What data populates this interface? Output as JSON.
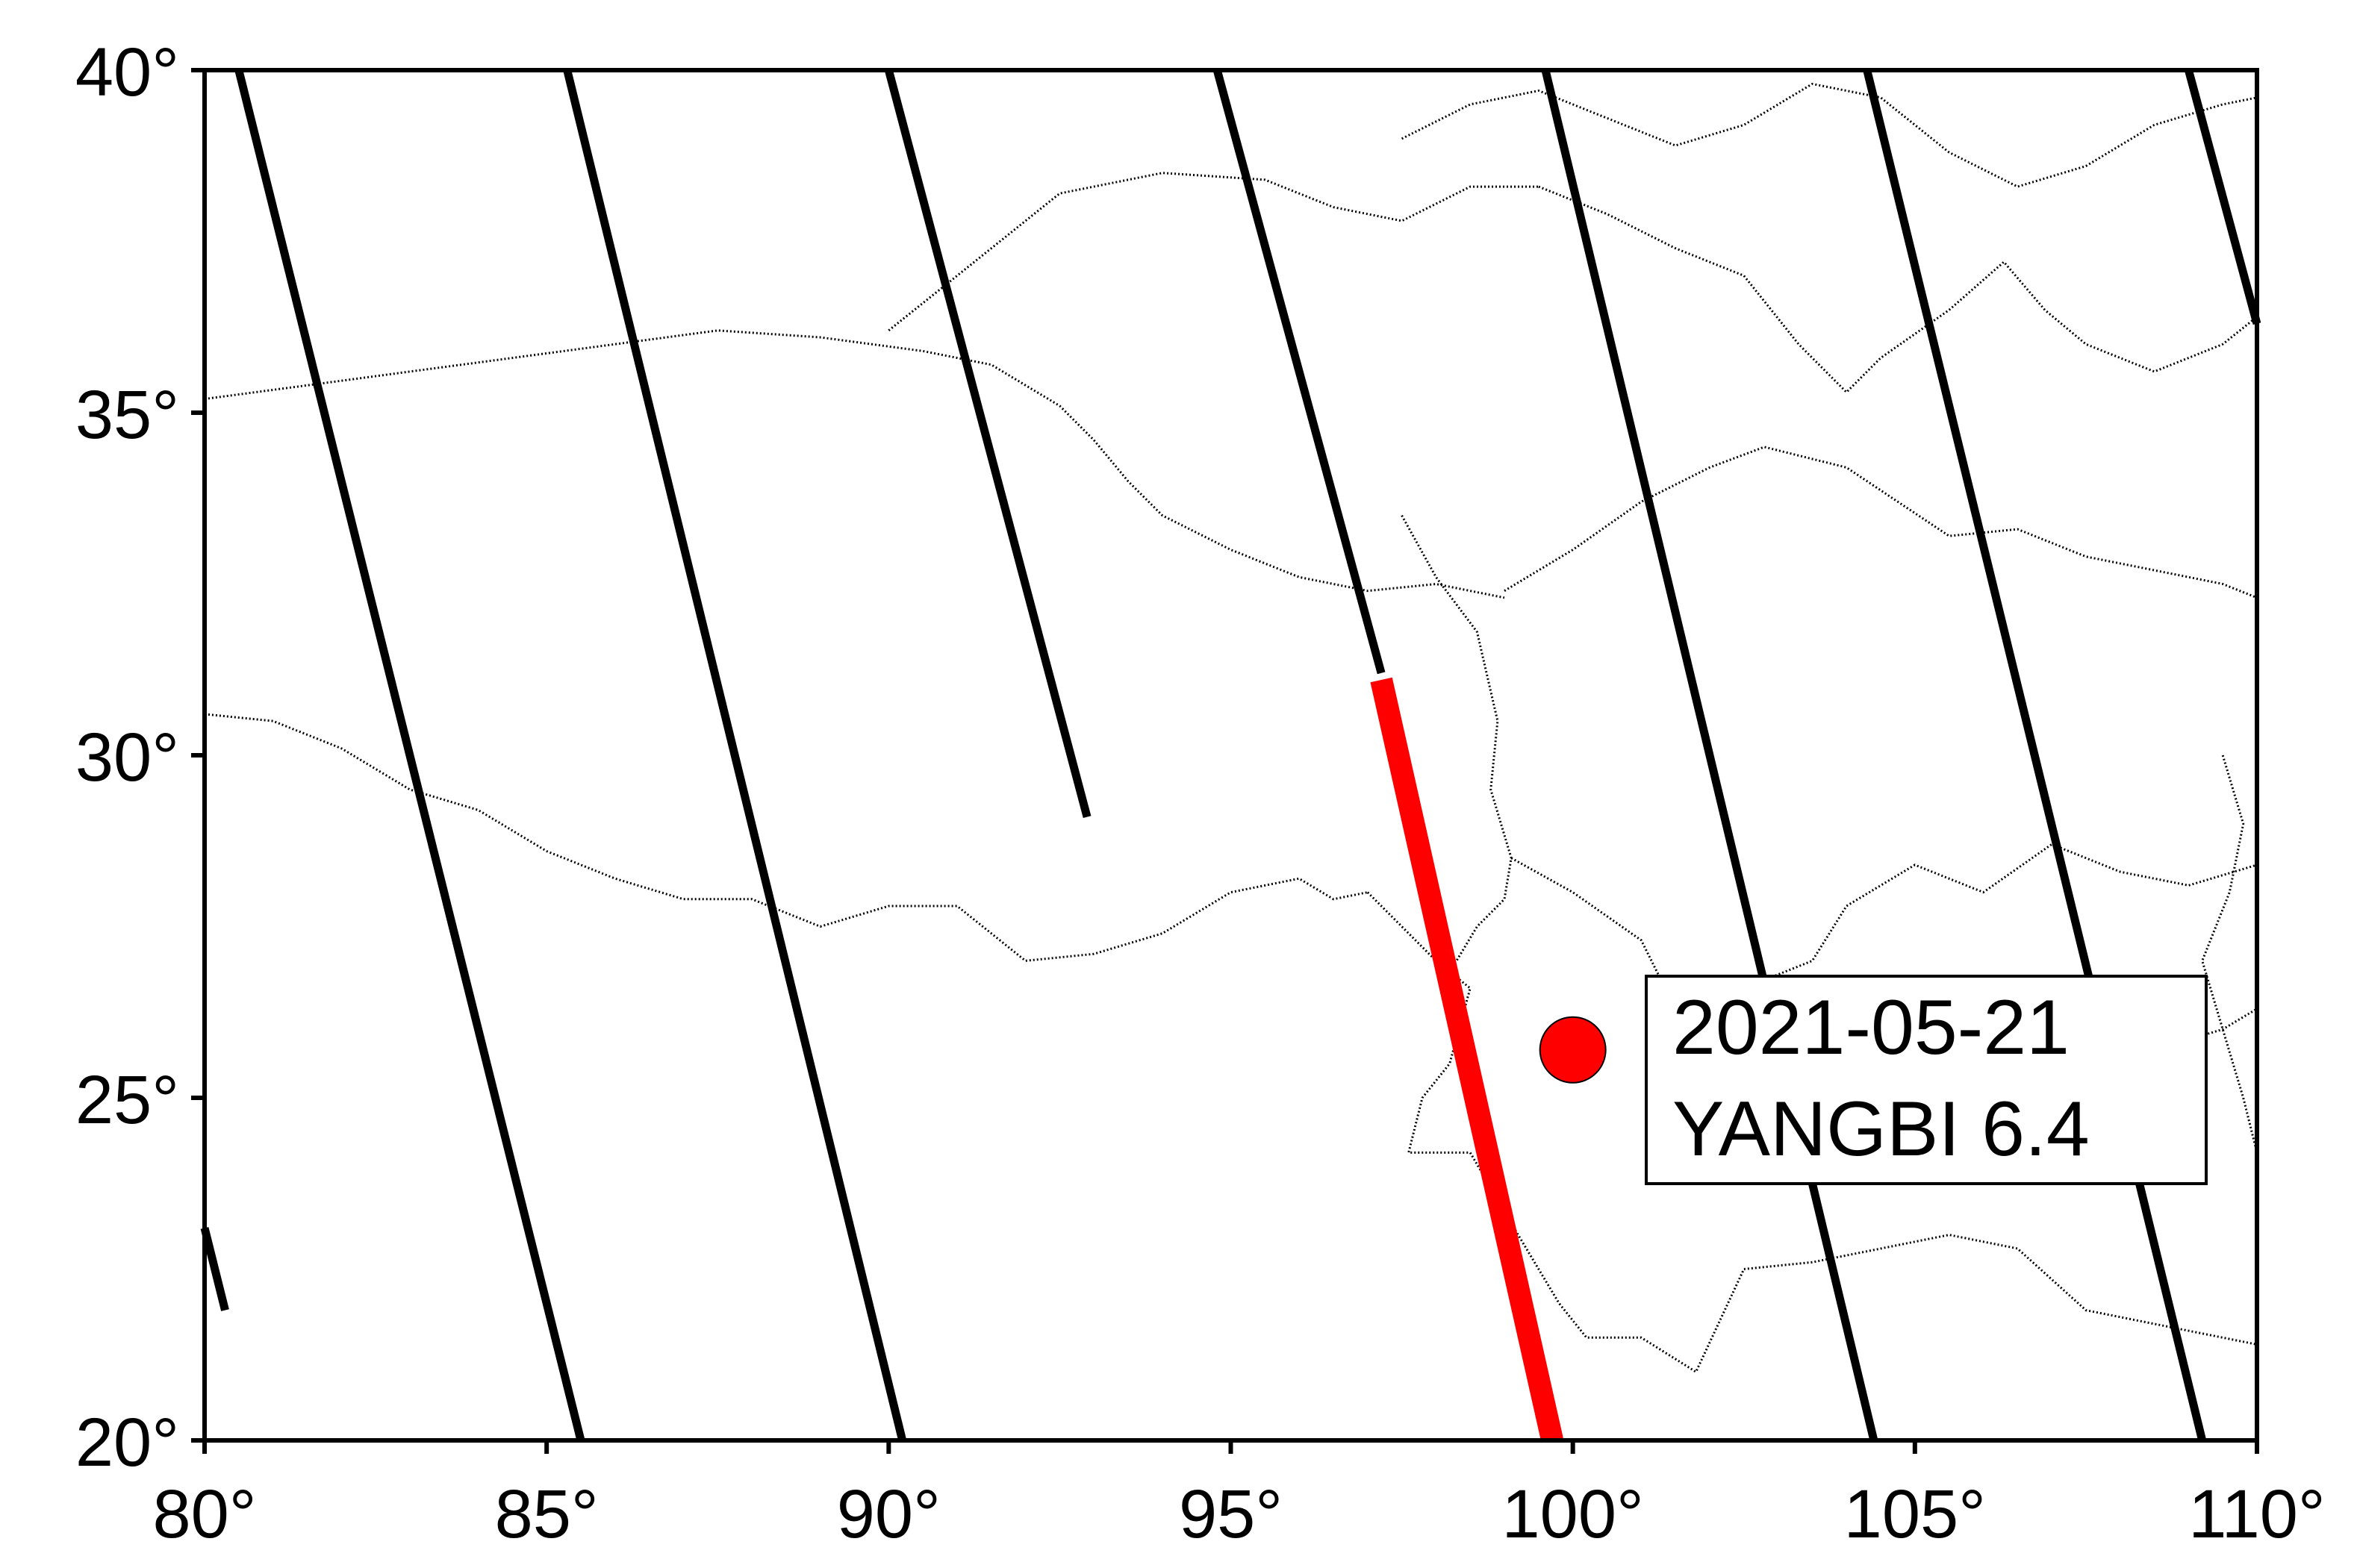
{
  "map": {
    "lon_range": [
      80,
      110
    ],
    "lat_range": [
      20,
      40
    ],
    "x_ticks": [
      {
        "value": 80,
        "label": "80°"
      },
      {
        "value": 85,
        "label": "85°"
      },
      {
        "value": 90,
        "label": "90°"
      },
      {
        "value": 95,
        "label": "95°"
      },
      {
        "value": 100,
        "label": "100°"
      },
      {
        "value": 105,
        "label": "105°"
      },
      {
        "value": 110,
        "label": "110°"
      }
    ],
    "y_ticks": [
      {
        "value": 20,
        "label": "20°"
      },
      {
        "value": 25,
        "label": "25°"
      },
      {
        "value": 30,
        "label": "30°"
      },
      {
        "value": 35,
        "label": "35°"
      },
      {
        "value": 40,
        "label": "40°"
      }
    ],
    "event": {
      "lon": 100.0,
      "lat": 25.7,
      "color": "#ff0000",
      "label_line1": "2021-05-21",
      "label_line2": "YANGBI 6.4"
    },
    "tracks_black": [
      {
        "name": "track-1",
        "points": [
          [
            80.5,
            40.0
          ],
          [
            85.5,
            20.0
          ]
        ]
      },
      {
        "name": "track-2",
        "points": [
          [
            85.3,
            40.0
          ],
          [
            90.2,
            20.0
          ]
        ]
      },
      {
        "name": "track-3",
        "points": [
          [
            90.0,
            40.0
          ],
          [
            92.9,
            29.1
          ]
        ]
      },
      {
        "name": "track-4",
        "points": [
          [
            94.8,
            40.0
          ],
          [
            97.2,
            31.2
          ]
        ]
      },
      {
        "name": "track-5",
        "points": [
          [
            99.6,
            40.0
          ],
          [
            104.4,
            20.0
          ]
        ]
      },
      {
        "name": "track-6",
        "points": [
          [
            104.3,
            40.0
          ],
          [
            109.2,
            20.0
          ]
        ]
      },
      {
        "name": "track-7",
        "points": [
          [
            109.0,
            40.0
          ],
          [
            110.0,
            36.3
          ]
        ]
      },
      {
        "name": "track-8",
        "points": [
          [
            80.0,
            23.1
          ],
          [
            80.3,
            21.9
          ]
        ]
      }
    ],
    "track_red": {
      "name": "selected-track",
      "color": "#ff0000",
      "points": [
        [
          97.2,
          31.1
        ],
        [
          99.7,
          20.0
        ]
      ]
    },
    "borders": [
      {
        "name": "border-south-himalaya",
        "points": [
          [
            80.0,
            30.6
          ],
          [
            81.0,
            30.5
          ],
          [
            82.0,
            30.1
          ],
          [
            83.0,
            29.5
          ],
          [
            84.0,
            29.2
          ],
          [
            85.0,
            28.6
          ],
          [
            86.0,
            28.2
          ],
          [
            87.0,
            27.9
          ],
          [
            88.0,
            27.9
          ],
          [
            89.0,
            27.5
          ],
          [
            90.0,
            27.8
          ],
          [
            91.0,
            27.8
          ],
          [
            92.0,
            27.0
          ],
          [
            93.0,
            27.1
          ],
          [
            94.0,
            27.4
          ],
          [
            95.0,
            28.0
          ],
          [
            96.0,
            28.2
          ],
          [
            96.5,
            27.9
          ],
          [
            97.0,
            28.0
          ]
        ]
      },
      {
        "name": "border-myanmar-yunnan",
        "points": [
          [
            97.0,
            28.0
          ],
          [
            97.5,
            27.5
          ],
          [
            98.0,
            27.0
          ],
          [
            98.5,
            26.6
          ],
          [
            98.2,
            25.5
          ],
          [
            97.8,
            25.0
          ],
          [
            97.6,
            24.2
          ],
          [
            98.5,
            24.2
          ],
          [
            99.2,
            23.0
          ],
          [
            99.8,
            22.0
          ],
          [
            100.2,
            21.5
          ],
          [
            101.0,
            21.5
          ],
          [
            101.8,
            21.0
          ],
          [
            102.5,
            22.5
          ],
          [
            103.5,
            22.6
          ],
          [
            104.5,
            22.8
          ],
          [
            105.5,
            23.0
          ],
          [
            106.5,
            22.8
          ],
          [
            107.5,
            21.9
          ],
          [
            108.5,
            21.7
          ],
          [
            109.5,
            21.5
          ],
          [
            110.0,
            21.4
          ]
        ]
      },
      {
        "name": "border-tibet-xinjiang",
        "points": [
          [
            80.0,
            35.2
          ],
          [
            81.5,
            35.4
          ],
          [
            83.0,
            35.6
          ],
          [
            84.5,
            35.8
          ],
          [
            86.0,
            36.0
          ],
          [
            87.5,
            36.2
          ],
          [
            89.0,
            36.1
          ],
          [
            90.5,
            35.9
          ],
          [
            91.5,
            35.7
          ],
          [
            92.5,
            35.1
          ],
          [
            93.0,
            34.6
          ]
        ]
      },
      {
        "name": "border-tibet-qinghai",
        "points": [
          [
            93.0,
            34.6
          ],
          [
            93.5,
            34.0
          ],
          [
            94.0,
            33.5
          ],
          [
            95.0,
            33.0
          ],
          [
            96.0,
            32.6
          ],
          [
            97.0,
            32.4
          ],
          [
            98.0,
            32.5
          ],
          [
            99.0,
            32.3
          ]
        ]
      },
      {
        "name": "border-qinghai-xinjiang",
        "points": [
          [
            90.0,
            36.2
          ],
          [
            91.0,
            37.0
          ],
          [
            92.5,
            38.2
          ],
          [
            94.0,
            38.5
          ],
          [
            95.5,
            38.4
          ],
          [
            96.5,
            38.0
          ],
          [
            97.5,
            37.8
          ],
          [
            98.5,
            38.3
          ],
          [
            99.5,
            38.3
          ]
        ]
      },
      {
        "name": "border-sichuan-west",
        "points": [
          [
            97.5,
            33.5
          ],
          [
            98.0,
            32.6
          ],
          [
            98.6,
            31.8
          ],
          [
            98.9,
            30.5
          ],
          [
            98.8,
            29.5
          ],
          [
            99.1,
            28.5
          ],
          [
            99.0,
            27.9
          ],
          [
            98.6,
            27.5
          ],
          [
            98.3,
            27.0
          ]
        ]
      },
      {
        "name": "border-sichuan-north",
        "points": [
          [
            99.0,
            32.4
          ],
          [
            100.0,
            33.0
          ],
          [
            101.0,
            33.7
          ],
          [
            102.0,
            34.2
          ],
          [
            102.8,
            34.5
          ],
          [
            104.0,
            34.2
          ],
          [
            105.5,
            33.2
          ],
          [
            106.5,
            33.3
          ],
          [
            107.5,
            32.9
          ],
          [
            108.5,
            32.7
          ],
          [
            109.5,
            32.5
          ],
          [
            110.0,
            32.3
          ]
        ]
      },
      {
        "name": "border-yunnan-sichuan",
        "points": [
          [
            99.1,
            28.5
          ],
          [
            100.0,
            28.0
          ],
          [
            101.0,
            27.3
          ],
          [
            101.5,
            26.3
          ],
          [
            102.5,
            26.6
          ],
          [
            103.5,
            27.0
          ],
          [
            104.0,
            27.8
          ],
          [
            105.0,
            28.4
          ],
          [
            106.0,
            28.0
          ],
          [
            107.0,
            28.7
          ],
          [
            108.0,
            28.3
          ],
          [
            109.0,
            28.1
          ],
          [
            110.0,
            28.4
          ]
        ]
      },
      {
        "name": "border-gansu-ningxia",
        "points": [
          [
            99.5,
            38.3
          ],
          [
            100.5,
            37.9
          ],
          [
            101.5,
            37.4
          ],
          [
            102.5,
            37.0
          ],
          [
            103.3,
            36.0
          ],
          [
            104.0,
            35.3
          ],
          [
            104.5,
            35.8
          ],
          [
            105.5,
            36.5
          ],
          [
            106.3,
            37.2
          ],
          [
            106.9,
            36.5
          ],
          [
            107.5,
            36.0
          ],
          [
            108.5,
            35.6
          ],
          [
            109.5,
            36.0
          ],
          [
            110.0,
            36.4
          ]
        ]
      },
      {
        "name": "border-inner-north",
        "points": [
          [
            97.5,
            39.0
          ],
          [
            98.5,
            39.5
          ],
          [
            99.5,
            39.7
          ],
          [
            100.5,
            39.3
          ],
          [
            101.5,
            38.9
          ],
          [
            102.5,
            39.2
          ],
          [
            103.5,
            39.8
          ],
          [
            104.5,
            39.6
          ],
          [
            105.5,
            38.8
          ],
          [
            106.5,
            38.3
          ],
          [
            107.5,
            38.6
          ],
          [
            108.5,
            39.2
          ],
          [
            109.5,
            39.5
          ],
          [
            110.0,
            39.6
          ]
        ]
      },
      {
        "name": "border-guizhou-guangxi",
        "points": [
          [
            104.5,
            26.6
          ],
          [
            105.5,
            26.0
          ],
          [
            106.5,
            25.6
          ],
          [
            107.5,
            25.3
          ],
          [
            108.5,
            25.7
          ],
          [
            109.5,
            26.0
          ],
          [
            110.0,
            26.3
          ]
        ]
      },
      {
        "name": "border-east-coast",
        "points": [
          [
            109.5,
            30.0
          ],
          [
            109.8,
            29.0
          ],
          [
            109.6,
            28.0
          ],
          [
            109.2,
            27.0
          ],
          [
            109.5,
            26.0
          ],
          [
            109.8,
            25.0
          ],
          [
            110.0,
            24.2
          ]
        ]
      }
    ]
  }
}
